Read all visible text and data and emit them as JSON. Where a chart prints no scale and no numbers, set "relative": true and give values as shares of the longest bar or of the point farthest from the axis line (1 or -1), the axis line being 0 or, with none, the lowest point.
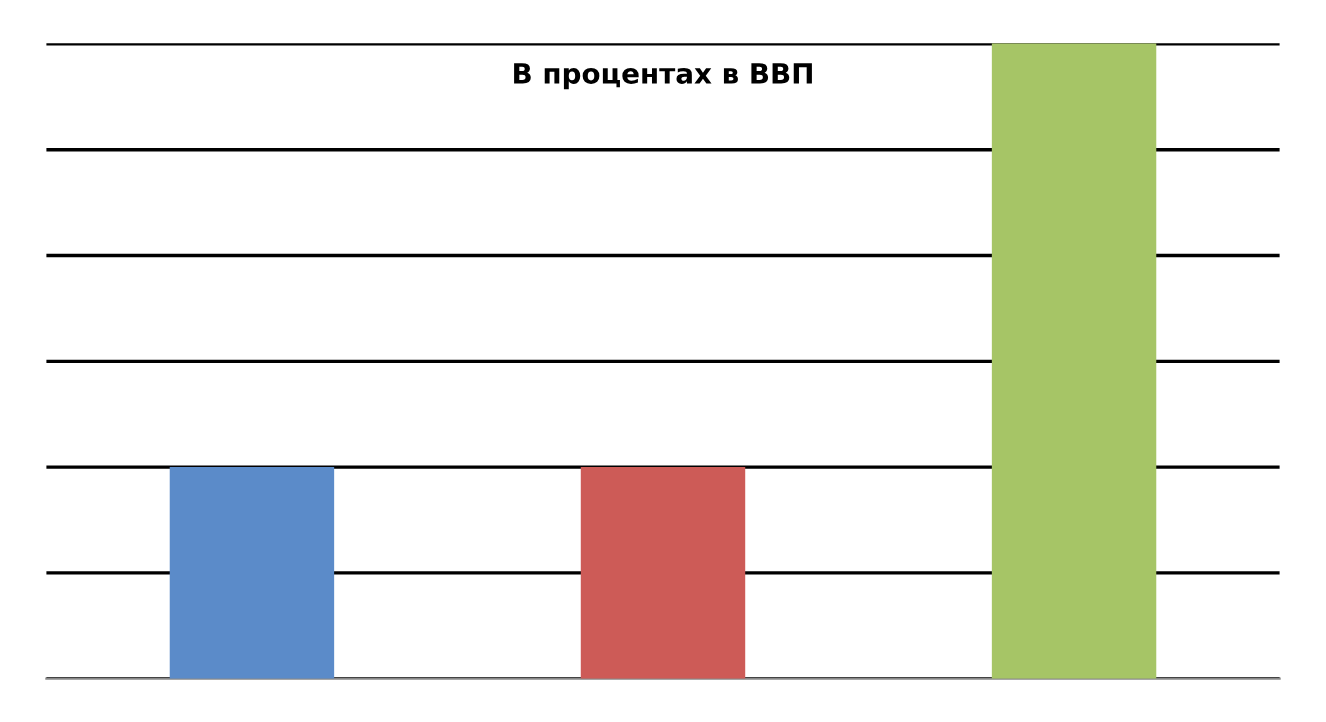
{
  "chart_data": {
    "type": "bar",
    "title": "В процентах в ВВП",
    "categories": [
      null,
      null,
      null
    ],
    "values": [
      0.333,
      0.333,
      1
    ],
    "colors": [
      "#5b8bc9",
      "#cd5b57",
      "#a6c566"
    ],
    "relative": true,
    "grid": "y",
    "tick_labels": false
  }
}
